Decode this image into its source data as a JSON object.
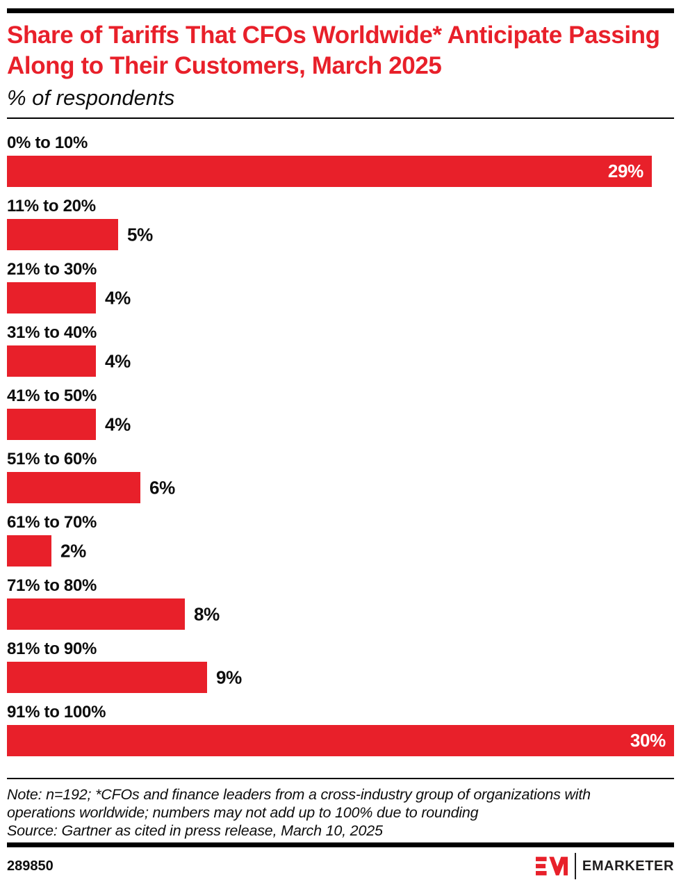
{
  "colors": {
    "accent_red": "#e8202a",
    "text_black": "#0d0d0d",
    "value_label_inside": "#ffffff"
  },
  "header": {
    "title": "Share of Tariffs That CFOs Worldwide* Anticipate Passing Along to Their Customers, March 2025",
    "subtitle": "% of respondents"
  },
  "chart_data": {
    "type": "bar",
    "orientation": "horizontal",
    "title": "Share of Tariffs That CFOs Worldwide* Anticipate Passing Along to Their Customers, March 2025",
    "subtitle": "% of respondents",
    "categories": [
      "0% to 10%",
      "11% to 20%",
      "21% to 30%",
      "31% to 40%",
      "41% to 50%",
      "51% to 60%",
      "61% to 70%",
      "71% to 80%",
      "81% to 90%",
      "91% to 100%"
    ],
    "values": [
      29,
      5,
      4,
      4,
      4,
      6,
      2,
      8,
      9,
      30
    ],
    "value_labels": [
      "29%",
      "5%",
      "4%",
      "4%",
      "4%",
      "6%",
      "2%",
      "8%",
      "9%",
      "30%"
    ],
    "xlim": [
      0,
      30
    ],
    "xlabel": "",
    "ylabel": "",
    "grid": false,
    "legend": false,
    "bar_color": "#e8202a"
  },
  "footer": {
    "note_line1": "Note: n=192; *CFOs and finance leaders from a cross-industry group of organizations with",
    "note_line2": "operations worldwide; numbers may not add up to 100% due to rounding",
    "source_line": "Source: Gartner as cited in press release, March 10, 2025",
    "chart_id": "289850",
    "brand": "EMARKETER"
  }
}
